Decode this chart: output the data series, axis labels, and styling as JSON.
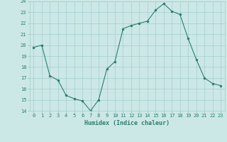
{
  "x": [
    0,
    1,
    2,
    3,
    4,
    5,
    6,
    7,
    8,
    9,
    10,
    11,
    12,
    13,
    14,
    15,
    16,
    17,
    18,
    19,
    20,
    21,
    22,
    23
  ],
  "y": [
    19.8,
    20.0,
    17.2,
    16.8,
    15.4,
    15.1,
    14.9,
    14.0,
    15.0,
    17.8,
    18.5,
    21.5,
    21.8,
    22.0,
    22.2,
    23.2,
    23.8,
    23.1,
    22.8,
    20.6,
    18.7,
    17.0,
    16.5,
    16.3
  ],
  "ylim": [
    14,
    24
  ],
  "yticks": [
    14,
    15,
    16,
    17,
    18,
    19,
    20,
    21,
    22,
    23,
    24
  ],
  "xlim": [
    -0.5,
    23.5
  ],
  "xlabel": "Humidex (Indice chaleur)",
  "line_color": "#2d7d6e",
  "marker_color": "#2d7d6e",
  "bg_color": "#cce8e6",
  "grid_color": "#a0cece",
  "tick_label_color": "#2d7d6e",
  "xlabel_color": "#2d7d6e",
  "fig_bg": "#cce8e6"
}
